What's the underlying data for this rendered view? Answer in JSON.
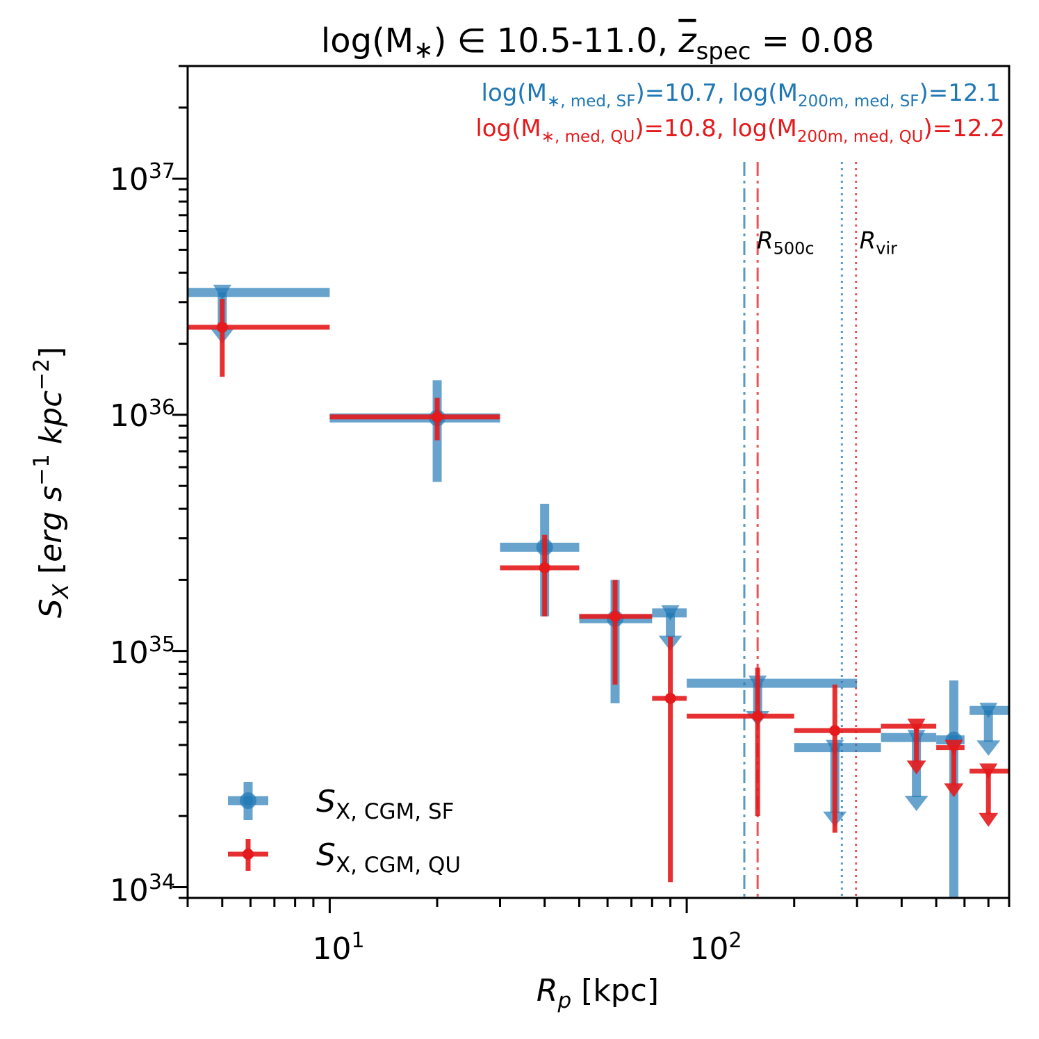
{
  "chart_data": {
    "type": "scatter",
    "title_parts": {
      "prefix": "log(M",
      "star": "∗",
      "mid": ") ∈  10.5-11.0, ",
      "z": "z",
      "z_sub": "spec",
      "equals": " = 0.08"
    },
    "xlabel": {
      "var": "R",
      "sub": "p",
      "unit": " [kpc]"
    },
    "ylabel": {
      "var": "S",
      "sub": "X",
      "open": " [",
      "units": "erg s",
      "exp1": "−1",
      "mid": " kpc",
      "exp2": "−2",
      "close": "]"
    },
    "xscale": "log",
    "yscale": "log",
    "xlim": [
      4,
      800
    ],
    "ylim": [
      9e+33,
      3e+37
    ],
    "x_ticks": [
      {
        "value": 10,
        "base": "10",
        "exp": "1"
      },
      {
        "value": 100,
        "base": "10",
        "exp": "2"
      }
    ],
    "y_ticks": [
      {
        "value": 1e+34,
        "base": "10",
        "exp": "34"
      },
      {
        "value": 1e+35,
        "base": "10",
        "exp": "35"
      },
      {
        "value": 1e+36,
        "base": "10",
        "exp": "36"
      },
      {
        "value": 1e+37,
        "base": "10",
        "exp": "37"
      }
    ],
    "annotations": {
      "sf": {
        "color": "#1f77b4",
        "parts": [
          "log(M",
          "∗, med, SF",
          ")=10.7, log(M",
          "200m, med, SF",
          ")=12.1"
        ]
      },
      "qu": {
        "color": "#e41a1c",
        "parts": [
          "log(M",
          "∗, med, QU",
          ")=10.8, log(M",
          "200m, med, QU",
          ")=12.2"
        ]
      }
    },
    "vlines": [
      {
        "name": "r500c-sf",
        "x": 145,
        "color": "#1f77b4",
        "style": "dashdot"
      },
      {
        "name": "r500c-qu",
        "x": 158,
        "color": "#e41a1c",
        "style": "dashdot"
      },
      {
        "name": "rvir-sf",
        "x": 272,
        "color": "#1f77b4",
        "style": "dotted"
      },
      {
        "name": "rvir-qu",
        "x": 298,
        "color": "#e41a1c",
        "style": "dotted"
      }
    ],
    "vline_labels": [
      {
        "name": "r500c-label",
        "main": "R",
        "sub": "500c",
        "x": 160,
        "y": 5.5e+36
      },
      {
        "name": "rvir-label",
        "main": "R",
        "sub": "vir",
        "x": 302,
        "y": 5.5e+36
      }
    ],
    "series": [
      {
        "name": "S_X,CGM,SF",
        "legend_main": "S",
        "legend_sub": "X, CGM, SF",
        "color": "#1f77b4",
        "points": [
          {
            "x": 5,
            "y": 3.3e+36,
            "xerr": [
              4,
              10
            ],
            "yerr": [
              2e+36,
              3.3e+36
            ],
            "upper_limit": true
          },
          {
            "x": 20,
            "y": 9.7e+35,
            "xerr": [
              10,
              30
            ],
            "yerr": [
              5.2e+35,
              1.4e+36
            ],
            "upper_limit": false
          },
          {
            "x": 40,
            "y": 2.75e+35,
            "xerr": [
              30,
              50
            ],
            "yerr": [
              1.4e+35,
              4.2e+35
            ],
            "upper_limit": false
          },
          {
            "x": 63,
            "y": 1.37e+35,
            "xerr": [
              50,
              80
            ],
            "yerr": [
              6e+34,
              2e+35
            ],
            "upper_limit": false
          },
          {
            "x": 90,
            "y": 1.45e+35,
            "xerr": [
              80,
              100
            ],
            "yerr": [
              1e+35,
              1.45e+35
            ],
            "upper_limit": true
          },
          {
            "x": 158,
            "y": 7.3e+34,
            "xerr": [
              100,
              300
            ],
            "yerr": [
              4.8e+34,
              7.3e+34
            ],
            "upper_limit": true
          },
          {
            "x": 260,
            "y": 3.9e+34,
            "xerr": [
              200,
              350
            ],
            "yerr": [
              1.8e+34,
              3.9e+34
            ],
            "upper_limit": true
          },
          {
            "x": 440,
            "y": 4.3e+34,
            "xerr": [
              350,
              500
            ],
            "yerr": [
              2.1e+34,
              4.3e+34
            ],
            "upper_limit": true
          },
          {
            "x": 560,
            "y": 4.2e+34,
            "xerr": [
              500,
              600
            ],
            "yerr": [
              9e+33,
              7.5e+34
            ],
            "upper_limit": false
          },
          {
            "x": 700,
            "y": 5.6e+34,
            "xerr": [
              620,
              800
            ],
            "yerr": [
              3.6e+34,
              5.6e+34
            ],
            "upper_limit": true
          }
        ]
      },
      {
        "name": "S_X,CGM,QU",
        "legend_main": "S",
        "legend_sub": "X, CGM, QU",
        "color": "#e41a1c",
        "points": [
          {
            "x": 5,
            "y": 2.35e+36,
            "xerr": [
              4,
              10
            ],
            "yerr": [
              1.45e+36,
              3.1e+36
            ],
            "upper_limit": false
          },
          {
            "x": 20,
            "y": 9.8e+35,
            "xerr": [
              10,
              30
            ],
            "yerr": [
              7.8e+35,
              1.18e+36
            ],
            "upper_limit": false
          },
          {
            "x": 40,
            "y": 2.25e+35,
            "xerr": [
              30,
              50
            ],
            "yerr": [
              1.4e+35,
              3.1e+35
            ],
            "upper_limit": false
          },
          {
            "x": 63,
            "y": 1.4e+35,
            "xerr": [
              50,
              80
            ],
            "yerr": [
              7.2e+34,
              2e+35
            ],
            "upper_limit": false
          },
          {
            "x": 90,
            "y": 6.3e+34,
            "xerr": [
              80,
              100
            ],
            "yerr": [
              1.05e+34,
              1.15e+35
            ],
            "upper_limit": false
          },
          {
            "x": 158,
            "y": 5.3e+34,
            "xerr": [
              100,
              200
            ],
            "yerr": [
              2e+34,
              8.5e+34
            ],
            "upper_limit": false
          },
          {
            "x": 260,
            "y": 4.6e+34,
            "xerr": [
              200,
              350
            ],
            "yerr": [
              1.7e+34,
              7.2e+34
            ],
            "upper_limit": false
          },
          {
            "x": 440,
            "y": 4.8e+34,
            "xerr": [
              350,
              500
            ],
            "yerr": [
              3e+34,
              4.8e+34
            ],
            "upper_limit": true
          },
          {
            "x": 560,
            "y": 3.9e+34,
            "xerr": [
              500,
              600
            ],
            "yerr": [
              2.4e+34,
              3.9e+34
            ],
            "upper_limit": true
          },
          {
            "x": 700,
            "y": 3.1e+34,
            "xerr": [
              620,
              800
            ],
            "yerr": [
              1.8e+34,
              3.1e+34
            ],
            "upper_limit": true
          }
        ]
      }
    ]
  }
}
